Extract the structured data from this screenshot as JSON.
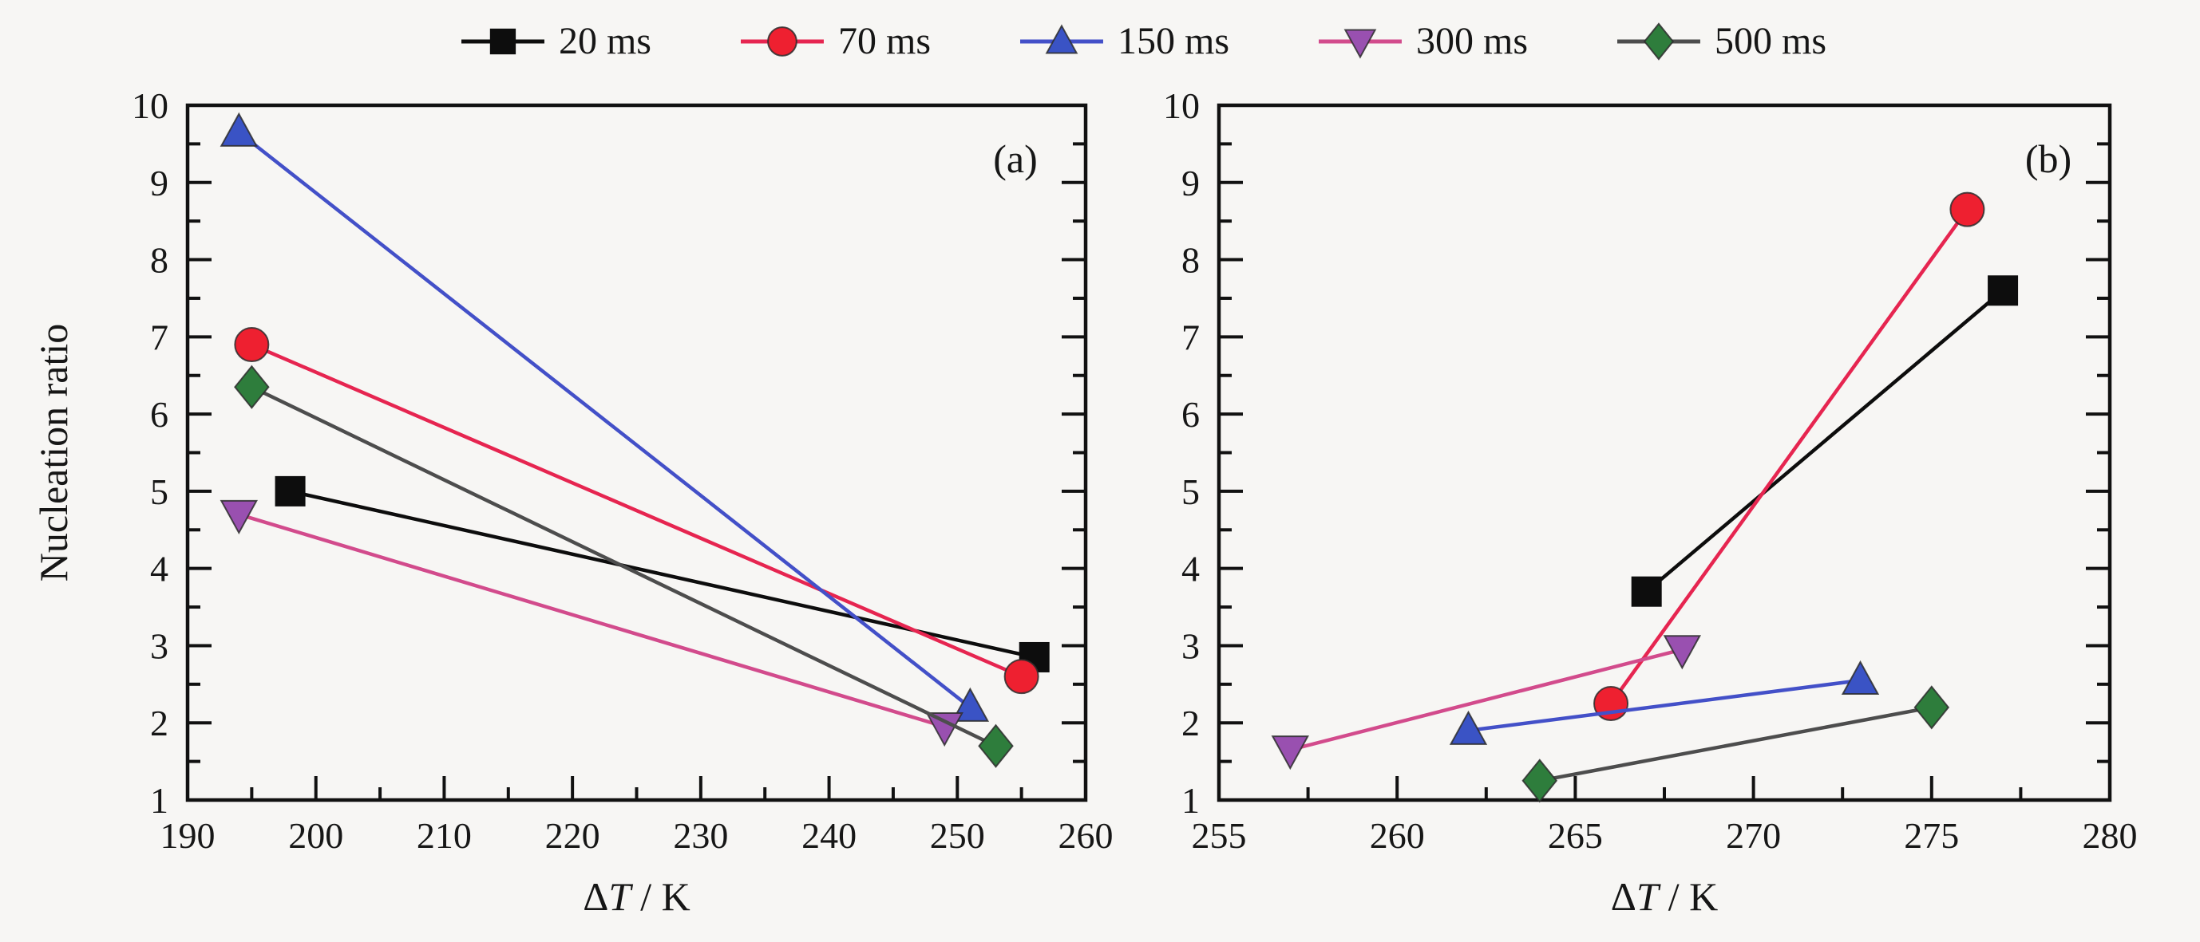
{
  "page": {
    "background": "#f7f6f4",
    "text_color": "#161616",
    "frame_color": "#111111"
  },
  "legend": {
    "position": "top-center",
    "items": [
      {
        "label": "20 ms",
        "marker": "square",
        "marker_color": "#0d0d0d",
        "line_color": "#0d0d0d"
      },
      {
        "label": "70 ms",
        "marker": "circle",
        "marker_color": "#ee2030",
        "line_color": "#e62550"
      },
      {
        "label": "150 ms",
        "marker": "triangle-up",
        "marker_color": "#3a53c5",
        "line_color": "#4350c8"
      },
      {
        "label": "300 ms",
        "marker": "triangle-down",
        "marker_color": "#9950b0",
        "line_color": "#d24b8c"
      },
      {
        "label": "500 ms",
        "marker": "diamond",
        "marker_color": "#2e7d3c",
        "line_color": "#4d4d4d"
      }
    ]
  },
  "chart_data": [
    {
      "type": "line",
      "panel_label": "(a)",
      "xlabel": {
        "delta": "Δ",
        "variable": "T",
        "unit": "/ K"
      },
      "ylabel": "Nucleation ratio",
      "xlim": [
        190,
        260
      ],
      "ylim": [
        1,
        10
      ],
      "x_major_ticks": [
        190,
        200,
        210,
        220,
        230,
        240,
        250,
        260
      ],
      "x_minor_ticks": [
        195,
        205,
        215,
        225,
        235,
        245,
        255
      ],
      "y_major_ticks": [
        1,
        2,
        3,
        4,
        5,
        6,
        7,
        8,
        9,
        10
      ],
      "y_minor_ticks": [
        1.5,
        2.5,
        3.5,
        4.5,
        5.5,
        6.5,
        7.5,
        8.5,
        9.5
      ],
      "grid": false,
      "series": [
        {
          "name": "20 ms",
          "points": [
            [
              198,
              5.0
            ],
            [
              256,
              2.85
            ]
          ]
        },
        {
          "name": "70 ms",
          "points": [
            [
              195,
              6.9
            ],
            [
              255,
              2.6
            ]
          ]
        },
        {
          "name": "150 ms",
          "points": [
            [
              194,
              9.65
            ],
            [
              251,
              2.2
            ]
          ]
        },
        {
          "name": "300 ms",
          "points": [
            [
              194,
              4.7
            ],
            [
              249,
              1.95
            ]
          ]
        },
        {
          "name": "500 ms",
          "points": [
            [
              195,
              6.35
            ],
            [
              253,
              1.7
            ]
          ]
        }
      ]
    },
    {
      "type": "line",
      "panel_label": "(b)",
      "xlabel": {
        "delta": "Δ",
        "variable": "T",
        "unit": "/ K"
      },
      "ylabel": "",
      "xlim": [
        255,
        280
      ],
      "ylim": [
        1,
        10
      ],
      "x_major_ticks": [
        255,
        260,
        265,
        270,
        275,
        280
      ],
      "x_minor_ticks": [
        257.5,
        262.5,
        267.5,
        272.5,
        277.5
      ],
      "y_major_ticks": [
        1,
        2,
        3,
        4,
        5,
        6,
        7,
        8,
        9,
        10
      ],
      "y_minor_ticks": [
        1.5,
        2.5,
        3.5,
        4.5,
        5.5,
        6.5,
        7.5,
        8.5,
        9.5
      ],
      "grid": false,
      "series": [
        {
          "name": "20 ms",
          "points": [
            [
              267,
              3.7
            ],
            [
              277,
              7.6
            ]
          ]
        },
        {
          "name": "70 ms",
          "points": [
            [
              266,
              2.25
            ],
            [
              276,
              8.65
            ]
          ]
        },
        {
          "name": "150 ms",
          "points": [
            [
              262,
              1.9
            ],
            [
              273,
              2.55
            ]
          ]
        },
        {
          "name": "300 ms",
          "points": [
            [
              257,
              1.65
            ],
            [
              268,
              2.95
            ]
          ]
        },
        {
          "name": "500 ms",
          "points": [
            [
              264,
              1.25
            ],
            [
              275,
              2.2
            ]
          ]
        }
      ]
    }
  ]
}
